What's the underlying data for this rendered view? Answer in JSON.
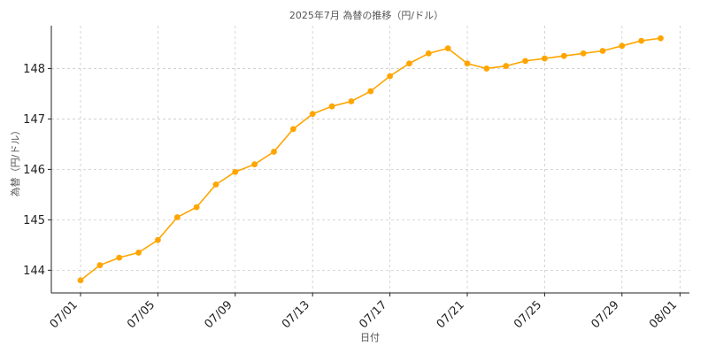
{
  "chart_data": {
    "type": "line",
    "title": "2025年7月 為替の推移（円/ドル）",
    "xlabel": "日付",
    "ylabel": "為替（円/ドル）",
    "x": [
      "07/01",
      "07/02",
      "07/03",
      "07/04",
      "07/05",
      "07/06",
      "07/07",
      "07/08",
      "07/09",
      "07/10",
      "07/11",
      "07/12",
      "07/13",
      "07/14",
      "07/15",
      "07/16",
      "07/17",
      "07/18",
      "07/19",
      "07/20",
      "07/21",
      "07/22",
      "07/23",
      "07/24",
      "07/25",
      "07/26",
      "07/27",
      "07/28",
      "07/29",
      "07/30",
      "07/31"
    ],
    "series": [
      {
        "values": [
          143.8,
          144.1,
          144.25,
          144.35,
          144.6,
          145.05,
          145.25,
          145.7,
          145.95,
          146.1,
          146.35,
          146.8,
          147.1,
          147.25,
          147.35,
          147.55,
          147.85,
          148.1,
          148.3,
          148.4,
          148.1,
          148.0,
          148.05,
          148.15,
          148.2,
          148.25,
          148.3,
          148.35,
          148.45,
          148.55,
          148.6
        ],
        "color": "#FFA500"
      }
    ],
    "xticks": [
      "07/01",
      "07/05",
      "07/09",
      "07/13",
      "07/17",
      "07/21",
      "07/25",
      "07/29",
      "08/01"
    ],
    "yticks": [
      144,
      145,
      146,
      147,
      148
    ],
    "ylim": [
      143.55,
      148.85
    ],
    "grid": true
  }
}
